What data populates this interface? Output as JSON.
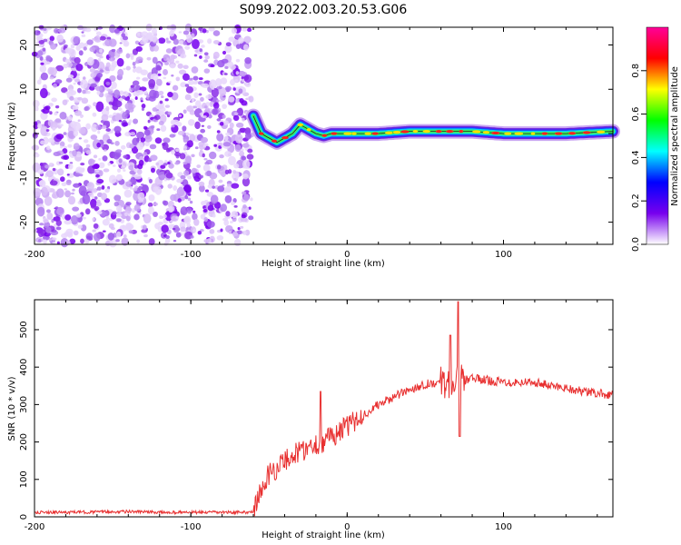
{
  "title": "S099.2022.003.20.53.G06",
  "chart_data": [
    {
      "type": "heatmap",
      "xlabel": "Height of straight line (km)",
      "ylabel": "Frequency (Hz)",
      "xlim": [
        -200,
        170
      ],
      "ylim": [
        -25,
        24
      ],
      "xticks": [
        -200,
        -100,
        0,
        100
      ],
      "yticks": [
        -20,
        -10,
        0,
        10,
        20
      ],
      "grid": false,
      "colorbar": {
        "label": "Normalized spectral amplitude",
        "range": [
          0,
          1
        ],
        "ticks": [
          "0.0",
          "0.2",
          "0.4",
          "0.6",
          "0.8"
        ],
        "colors": [
          "#ffffff",
          "#7700ee",
          "#0000ff",
          "#00ffff",
          "#00ff00",
          "#ffff00",
          "#ff0000",
          "#ff0099"
        ]
      },
      "noise_region_km": [
        -200,
        -60
      ],
      "ridge": {
        "x": [
          -60,
          -55,
          -50,
          -45,
          -40,
          -35,
          -30,
          -25,
          -20,
          -15,
          -10,
          0,
          20,
          40,
          60,
          80,
          100,
          120,
          140,
          170
        ],
        "y": [
          4,
          0,
          -1,
          -2,
          -1,
          0,
          2,
          1,
          0,
          -0.5,
          0,
          0,
          0,
          0.5,
          0.5,
          0.5,
          0,
          0,
          0,
          0.5
        ]
      }
    },
    {
      "type": "line",
      "xlabel": "Height of straight line (km)",
      "ylabel": "SNR (10 * v/v)",
      "xlim": [
        -200,
        170
      ],
      "ylim": [
        0,
        580
      ],
      "xticks": [
        -200,
        -100,
        0,
        100
      ],
      "yticks": [
        0,
        100,
        200,
        300,
        400,
        500
      ],
      "grid": false,
      "series": [
        {
          "color": "#e83030",
          "x": [
            -200,
            -180,
            -160,
            -140,
            -120,
            -100,
            -80,
            -65,
            -60,
            -55,
            -50,
            -45,
            -40,
            -35,
            -30,
            -25,
            -20,
            -15,
            -10,
            -5,
            0,
            10,
            20,
            30,
            40,
            50,
            60,
            65,
            70,
            75,
            80,
            90,
            100,
            110,
            120,
            130,
            140,
            150,
            160,
            170
          ],
          "y": [
            12,
            12,
            13,
            14,
            12,
            12,
            12,
            12,
            15,
            70,
            115,
            130,
            150,
            165,
            175,
            185,
            195,
            200,
            215,
            230,
            240,
            270,
            300,
            320,
            340,
            355,
            360,
            360,
            365,
            365,
            370,
            365,
            360,
            360,
            360,
            350,
            345,
            335,
            330,
            325
          ]
        }
      ]
    }
  ]
}
